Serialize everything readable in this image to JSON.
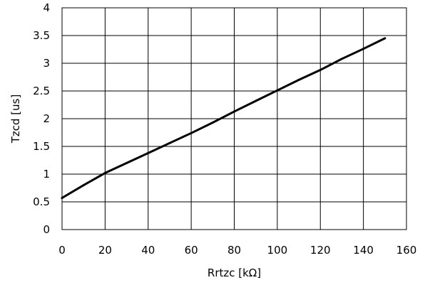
{
  "chart_data": {
    "type": "line",
    "xlabel": "Rrtzc [kΩ]",
    "ylabel": "Tzcd [us]",
    "xlim": [
      0,
      160
    ],
    "ylim": [
      0,
      4
    ],
    "x_ticks": [
      0,
      20,
      40,
      60,
      80,
      100,
      120,
      140,
      160
    ],
    "y_ticks": [
      0,
      0.5,
      1,
      1.5,
      2,
      2.5,
      3,
      3.5,
      4
    ],
    "x_tick_labels": [
      "0",
      "20",
      "40",
      "60",
      "80",
      "100",
      "120",
      "140",
      "160"
    ],
    "y_tick_labels": [
      "0",
      "0.5",
      "1",
      "1.5",
      "2",
      "2.5",
      "3",
      "3.5",
      "4"
    ],
    "grid": true,
    "legend": "none",
    "series": [
      {
        "color": "#000000",
        "x": [
          0,
          10,
          20,
          30,
          40,
          50,
          60,
          70,
          80,
          90,
          100,
          110,
          120,
          130,
          140,
          150
        ],
        "y": [
          0.57,
          0.8,
          1.02,
          1.2,
          1.38,
          1.56,
          1.74,
          1.93,
          2.13,
          2.32,
          2.51,
          2.7,
          2.88,
          3.08,
          3.26,
          3.45
        ]
      }
    ]
  }
}
